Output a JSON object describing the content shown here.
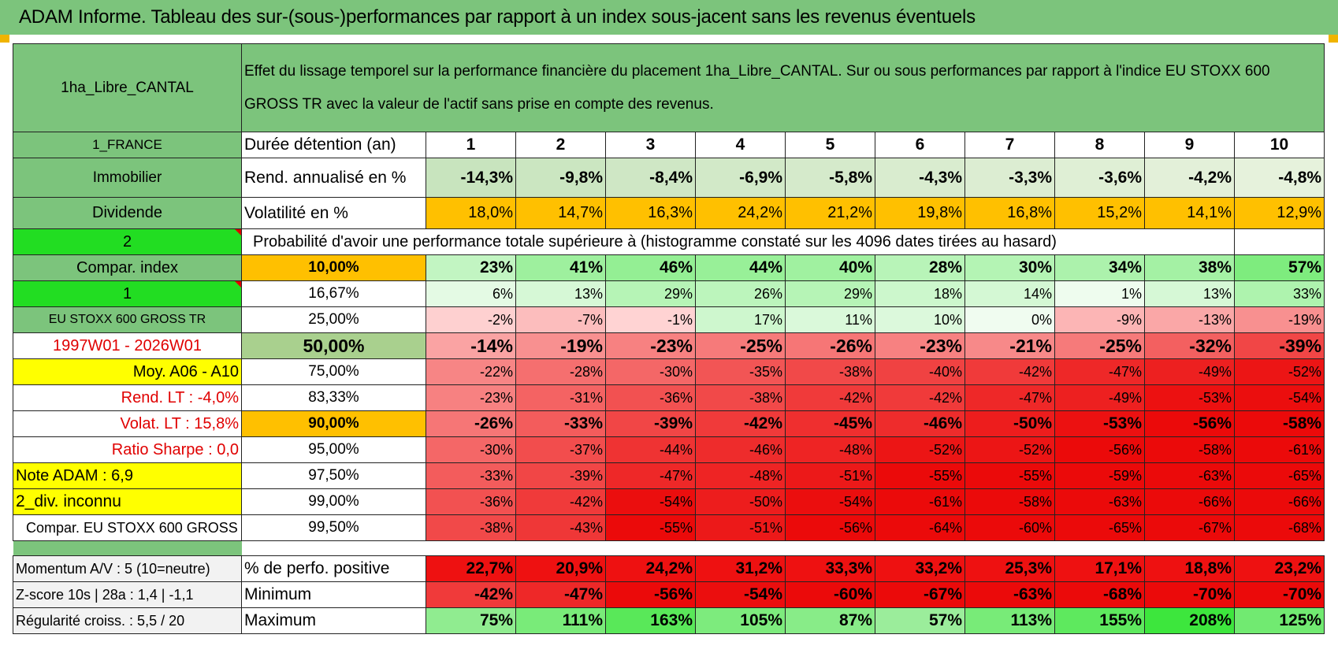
{
  "title": "ADAM Informe. Tableau des sur-(sous-)performances par rapport à un index sous-jacent sans les revenus éventuels",
  "header": {
    "fund_name": "1ha_Libre_CANTAL",
    "description": "Effet du lissage temporel sur la performance financière du placement 1ha_Libre_CANTAL. Sur ou sous performances par rapport à l'indice EU STOXX 600 GROSS TR avec la valeur de l'actif sans prise en compte des revenus."
  },
  "left": {
    "country": "1_FRANCE",
    "category": "Immobilier",
    "type": "Dividende",
    "selector1": "2",
    "compar_label": "Compar. index",
    "selector2": "1",
    "index_name": "EU STOXX 600 GROSS TR",
    "period": "1997W01 - 2026W01",
    "moy": "Moy. A06 - A10",
    "rend_lt": "Rend. LT :    -4,0%",
    "volat_lt": "Volat. LT :    15,8%",
    "sharpe": "Ratio Sharpe :     0,0",
    "note": "Note ADAM : 6,9",
    "div": "2_div. inconnu",
    "compar_full": "Compar. EU STOXX 600 GROSS TR",
    "momentum": "Momentum A/V : 5 (10=neutre)",
    "zscore": "Z-score 10s | 28a : 1,4 | -1,1",
    "regularite": "Régularité croiss. : 5,5 / 20"
  },
  "rows_labels": {
    "duree": "Durée détention (an)",
    "rend": "Rend. annualisé en %",
    "vol": "Volatilité en %",
    "proba": "Probabilité d'avoir une performance totale supérieure à (histogramme constaté sur les 4096 dates tirées au hasard)",
    "pos": "% de perfo. positive",
    "min": "Minimum",
    "max": "Maximum"
  },
  "years": [
    "1",
    "2",
    "3",
    "4",
    "5",
    "6",
    "7",
    "8",
    "9",
    "10"
  ],
  "rend": [
    "-14,3%",
    "-9,8%",
    "-8,4%",
    "-6,9%",
    "-5,8%",
    "-4,3%",
    "-3,3%",
    "-3,6%",
    "-4,2%",
    "-4,8%"
  ],
  "vol": [
    "18,0%",
    "14,7%",
    "16,3%",
    "24,2%",
    "21,2%",
    "19,8%",
    "16,8%",
    "15,2%",
    "14,1%",
    "12,9%"
  ],
  "percentiles": [
    {
      "p": "10,00%",
      "v": [
        "23%",
        "41%",
        "46%",
        "44%",
        "40%",
        "28%",
        "30%",
        "34%",
        "38%",
        "57%"
      ]
    },
    {
      "p": "16,67%",
      "v": [
        "6%",
        "13%",
        "29%",
        "26%",
        "29%",
        "18%",
        "14%",
        "1%",
        "13%",
        "33%"
      ]
    },
    {
      "p": "25,00%",
      "v": [
        "-2%",
        "-7%",
        "-1%",
        "17%",
        "11%",
        "10%",
        "0%",
        "-9%",
        "-13%",
        "-19%"
      ]
    },
    {
      "p": "50,00%",
      "v": [
        "-14%",
        "-19%",
        "-23%",
        "-25%",
        "-26%",
        "-23%",
        "-21%",
        "-25%",
        "-32%",
        "-39%"
      ]
    },
    {
      "p": "75,00%",
      "v": [
        "-22%",
        "-28%",
        "-30%",
        "-35%",
        "-38%",
        "-40%",
        "-42%",
        "-47%",
        "-49%",
        "-52%"
      ]
    },
    {
      "p": "83,33%",
      "v": [
        "-23%",
        "-31%",
        "-36%",
        "-38%",
        "-42%",
        "-42%",
        "-47%",
        "-49%",
        "-53%",
        "-54%"
      ]
    },
    {
      "p": "90,00%",
      "v": [
        "-26%",
        "-33%",
        "-39%",
        "-42%",
        "-45%",
        "-46%",
        "-50%",
        "-53%",
        "-56%",
        "-58%"
      ]
    },
    {
      "p": "95,00%",
      "v": [
        "-30%",
        "-37%",
        "-44%",
        "-46%",
        "-48%",
        "-52%",
        "-52%",
        "-56%",
        "-58%",
        "-61%"
      ]
    },
    {
      "p": "97,50%",
      "v": [
        "-33%",
        "-39%",
        "-47%",
        "-48%",
        "-51%",
        "-55%",
        "-55%",
        "-59%",
        "-63%",
        "-65%"
      ]
    },
    {
      "p": "99,00%",
      "v": [
        "-36%",
        "-42%",
        "-54%",
        "-50%",
        "-54%",
        "-61%",
        "-58%",
        "-63%",
        "-66%",
        "-66%"
      ]
    },
    {
      "p": "99,50%",
      "v": [
        "-38%",
        "-43%",
        "-55%",
        "-51%",
        "-56%",
        "-64%",
        "-60%",
        "-65%",
        "-67%",
        "-68%"
      ]
    }
  ],
  "pos": [
    "22,7%",
    "20,9%",
    "24,2%",
    "31,2%",
    "33,3%",
    "33,2%",
    "25,3%",
    "17,1%",
    "18,8%",
    "23,2%"
  ],
  "min": [
    "-42%",
    "-47%",
    "-56%",
    "-54%",
    "-60%",
    "-67%",
    "-63%",
    "-68%",
    "-70%",
    "-70%"
  ],
  "max": [
    "75%",
    "111%",
    "163%",
    "105%",
    "87%",
    "57%",
    "113%",
    "155%",
    "208%",
    "125%"
  ],
  "colors": {
    "header_green": "#7cc47c",
    "orange": "#ffc000",
    "yellow": "#ffff00",
    "lime": "#22dd22",
    "red": "#e00000"
  }
}
